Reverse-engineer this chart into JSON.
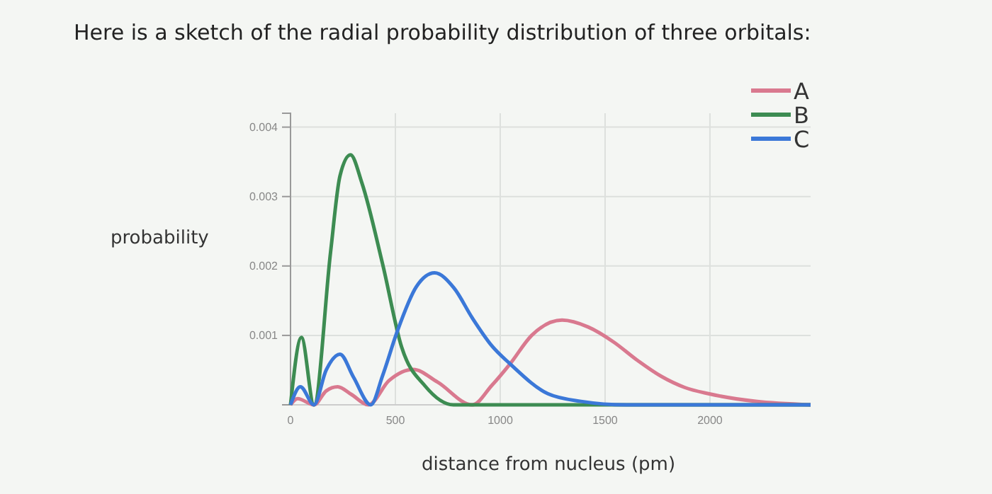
{
  "chart_data": {
    "type": "line",
    "title": "Here is a sketch of the radial probability distribution of three orbitals:",
    "xlabel": "distance from nucleus (pm)",
    "ylabel": "probability",
    "xlim": [
      0,
      2480
    ],
    "ylim": [
      0,
      0.0042
    ],
    "xticks": [
      0,
      500,
      1000,
      1500,
      2000
    ],
    "yticks": [
      0.001,
      0.002,
      0.003,
      0.004
    ],
    "grid": true,
    "legend": "top right",
    "series": [
      {
        "name": "A",
        "color": "#d9798f",
        "x": [
          0,
          34,
          112,
          170,
          225,
          290,
          372,
          470,
          585,
          700,
          867,
          960,
          1047,
          1150,
          1295,
          1420,
          1543,
          1650,
          1768,
          1880,
          1993,
          2218,
          2480
        ],
        "values": [
          0,
          9e-05,
          0,
          0.0002,
          0.00026,
          0.00015,
          0,
          0.00035,
          0.00051,
          0.00033,
          0,
          0.00028,
          0.00059,
          0.001,
          0.00122,
          0.00112,
          0.0009,
          0.00065,
          0.00041,
          0.00025,
          0.00016,
          5e-05,
          0
        ]
      },
      {
        "name": "B",
        "color": "#3d8c52",
        "x": [
          0,
          52,
          112,
          191,
          236,
          286,
          340,
          439,
          530,
          642,
          777,
          1000,
          1500,
          2000,
          2480
        ],
        "values": [
          0,
          0.00097,
          0,
          0.0022,
          0.0033,
          0.0036,
          0.0032,
          0.00203,
          0.00083,
          0.00027,
          0,
          0,
          0,
          0,
          0
        ]
      },
      {
        "name": "C",
        "color": "#3b78d8",
        "x": [
          0,
          47,
          112,
          170,
          236,
          300,
          383,
          439,
          507,
          600,
          687,
          780,
          867,
          960,
          1047,
          1227,
          1385,
          1600,
          2000,
          2480
        ],
        "values": [
          0,
          0.00026,
          0,
          0.0005,
          0.00073,
          0.0004,
          0,
          0.00042,
          0.00104,
          0.0017,
          0.0019,
          0.00168,
          0.00125,
          0.00085,
          0.00059,
          0.00016,
          5e-05,
          0,
          0,
          0
        ]
      }
    ]
  }
}
